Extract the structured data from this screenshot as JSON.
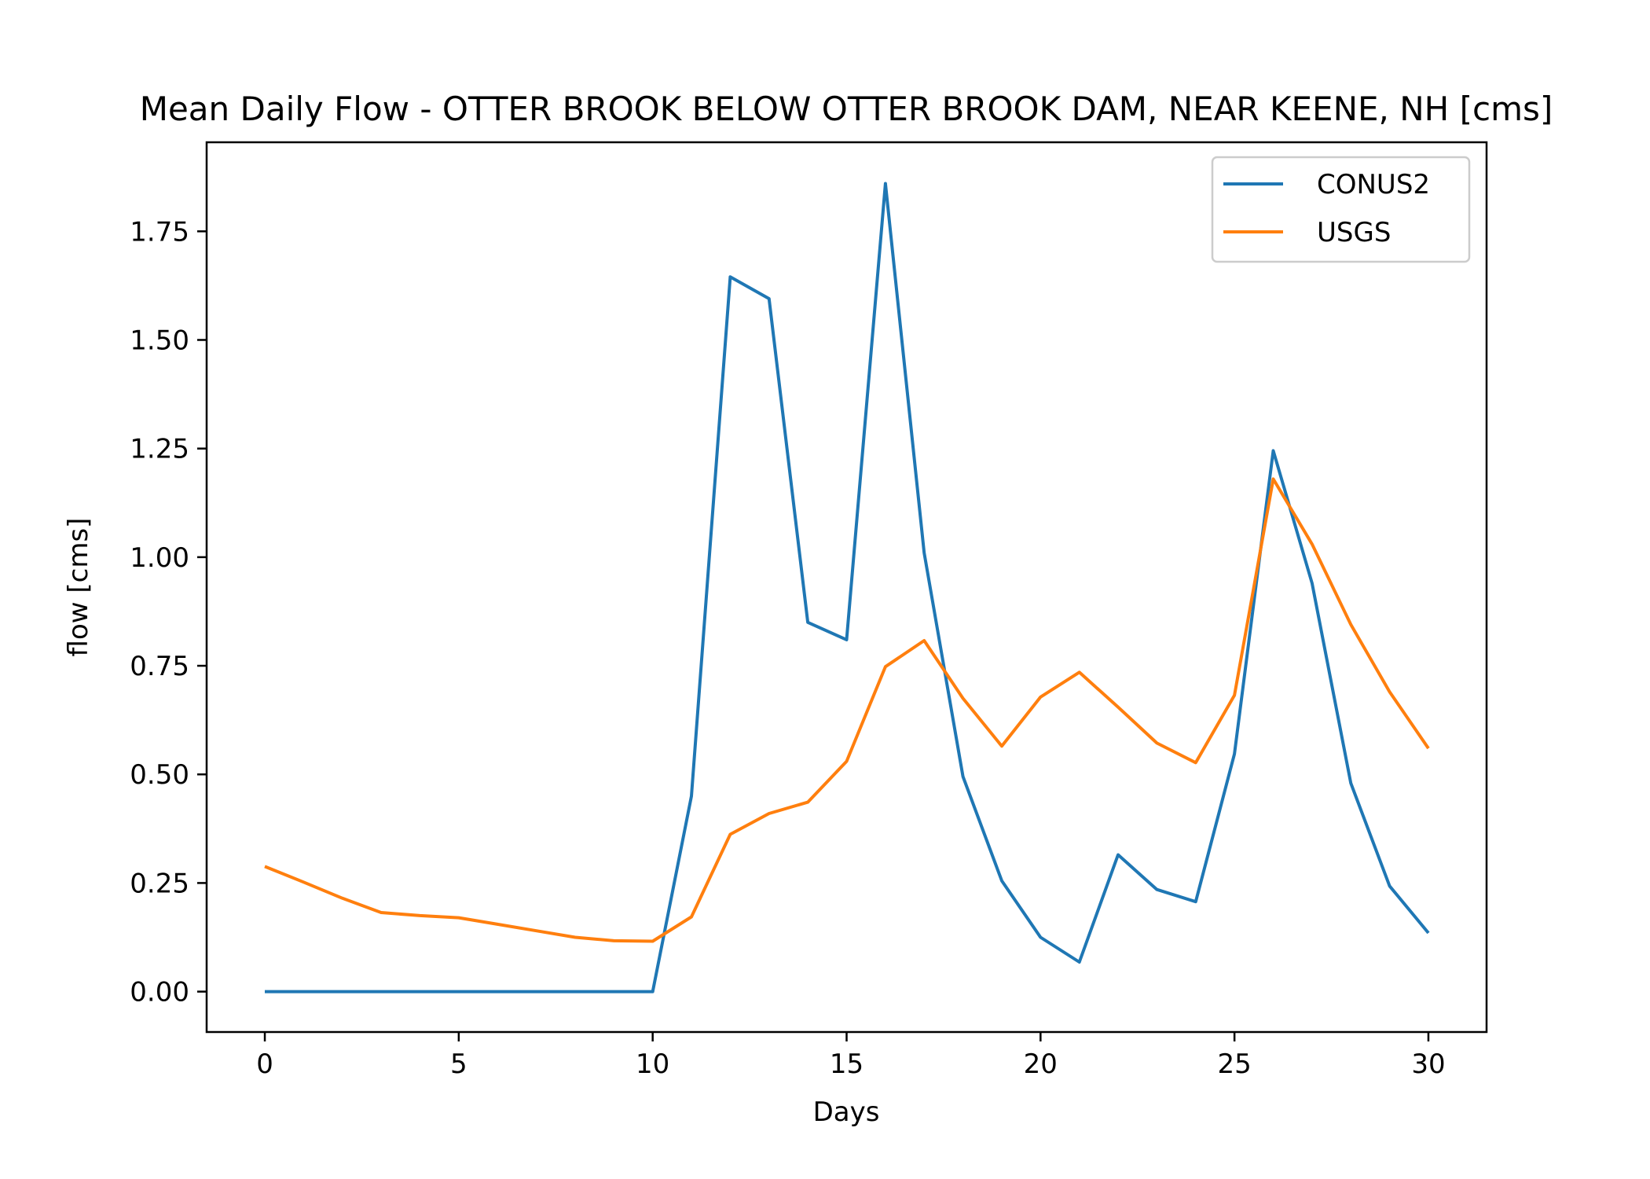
{
  "chart_data": {
    "type": "line",
    "title": "Mean Daily Flow - OTTER BROOK BELOW OTTER BROOK DAM, NEAR KEENE, NH [cms]",
    "xlabel": "Days",
    "ylabel": "flow [cms]",
    "xlim": [
      -1.5,
      31.5
    ],
    "ylim": [
      -0.093,
      1.955
    ],
    "xticks": [
      "0",
      "5",
      "10",
      "15",
      "20",
      "25",
      "30"
    ],
    "yticks": [
      "0.00",
      "0.25",
      "0.50",
      "0.75",
      "1.00",
      "1.25",
      "1.50",
      "1.75"
    ],
    "x": [
      0,
      1,
      2,
      3,
      4,
      5,
      6,
      7,
      8,
      9,
      10,
      11,
      12,
      13,
      14,
      15,
      16,
      17,
      18,
      19,
      20,
      21,
      22,
      23,
      24,
      25,
      26,
      27,
      28,
      29,
      30
    ],
    "series": [
      {
        "name": "CONUS2",
        "color": "#1f77b4",
        "values": [
          0,
          0,
          0,
          0,
          0,
          0,
          0,
          0,
          0,
          0,
          0,
          0.45,
          1.645,
          1.595,
          0.85,
          0.81,
          1.86,
          1.01,
          0.495,
          0.255,
          0.125,
          0.068,
          0.315,
          0.235,
          0.207,
          0.547,
          1.245,
          0.94,
          0.48,
          0.243,
          0.135
        ]
      },
      {
        "name": "USGS",
        "color": "#ff7f0e",
        "values": [
          0.288,
          0.252,
          0.215,
          0.182,
          0.175,
          0.17,
          0.155,
          0.14,
          0.125,
          0.117,
          0.116,
          0.172,
          0.362,
          0.41,
          0.436,
          0.53,
          0.748,
          0.808,
          0.675,
          0.565,
          0.678,
          0.735,
          0.655,
          0.572,
          0.527,
          0.682,
          1.18,
          1.03,
          0.845,
          0.69,
          0.56
        ]
      }
    ],
    "legend_position": "top-right",
    "grid": false
  }
}
